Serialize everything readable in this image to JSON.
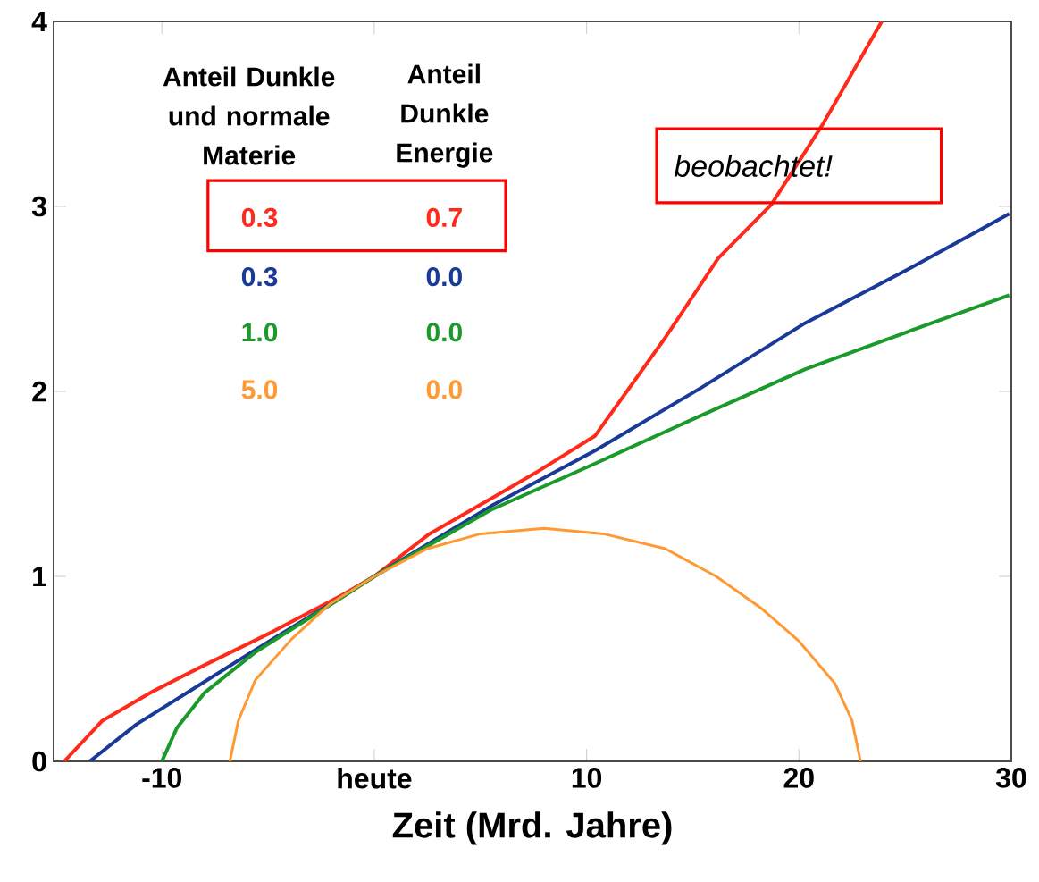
{
  "chart_data": {
    "type": "line",
    "xlabel": "Zeit (Mrd. Jahre)",
    "annotations": [
      "Anteil Dunkle und normale Materie",
      "Anteil Dunkle Energie",
      "0.3",
      "0.7",
      "0.3",
      "0.0",
      "1.0",
      "0.0",
      "5.0",
      "0.0",
      "beobachtet!"
    ],
    "series": [
      {
        "color": "#ff2a1a",
        "x": [
          -14.6,
          -12.8,
          -10.4,
          -8.0,
          -4.8,
          -1.5,
          0,
          2.6,
          5.5,
          7.6,
          10.4,
          13.7,
          16.2,
          18.7,
          21.1,
          23.9
        ],
        "values": [
          0,
          0.22,
          0.38,
          0.52,
          0.7,
          0.9,
          1,
          1.23,
          1.42,
          1.56,
          1.76,
          2.29,
          2.72,
          3.01,
          3.44,
          4.0
        ]
      },
      {
        "color": "#1a3a99",
        "x": [
          -13.4,
          -11.2,
          -8.0,
          -4.8,
          -1.5,
          0,
          5.5,
          10.4,
          15.4,
          20.3,
          25.3,
          29.9
        ],
        "values": [
          0,
          0.2,
          0.43,
          0.66,
          0.89,
          1,
          1.38,
          1.68,
          2.02,
          2.37,
          2.67,
          2.96
        ]
      },
      {
        "color": "#1a9a2a",
        "x": [
          -10.0,
          -9.3,
          -8.0,
          -5.6,
          -2.3,
          0,
          5.5,
          10.4,
          15.4,
          20.3,
          25.3,
          29.9
        ],
        "values": [
          0,
          0.18,
          0.37,
          0.59,
          0.83,
          1,
          1.36,
          1.61,
          1.87,
          2.12,
          2.33,
          2.52
        ]
      },
      {
        "color": "#ff9933",
        "x": [
          -6.8,
          -6.4,
          -5.6,
          -3.9,
          -2.1,
          0,
          2.5,
          5.0,
          8.0,
          10.8,
          13.7,
          16.1,
          18.2,
          20.0,
          21.7,
          22.5,
          22.9
        ],
        "values": [
          0,
          0.22,
          0.44,
          0.66,
          0.85,
          1,
          1.15,
          1.23,
          1.26,
          1.23,
          1.15,
          1.0,
          0.83,
          0.65,
          0.42,
          0.22,
          0
        ]
      }
    ],
    "xlim": [
      -15.1,
      30
    ],
    "ylim": [
      0,
      4
    ],
    "xticks": [
      -10,
      {
        "value": 0,
        "label": "heute"
      },
      10,
      20,
      30
    ],
    "yticks": [
      0,
      1,
      2,
      3,
      4
    ]
  }
}
